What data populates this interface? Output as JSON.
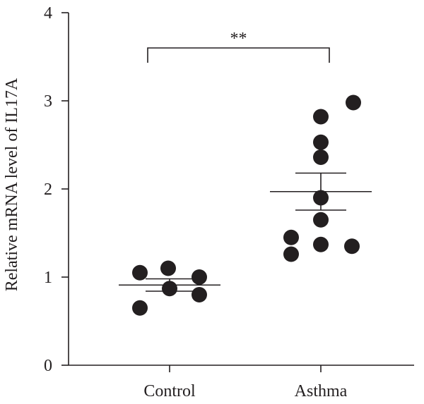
{
  "chart_data": {
    "type": "scatter",
    "ylabel": "Relative mRNA level of IL17A",
    "xlabel": "",
    "ylim": [
      0,
      4
    ],
    "yticks": [
      "0",
      "1",
      "2",
      "3",
      "4"
    ],
    "categories": [
      "Control",
      "Asthma"
    ],
    "series": [
      {
        "category": "Control",
        "values": [
          1.05,
          1.1,
          1.0,
          0.87,
          0.8,
          0.65
        ],
        "mean": 0.91,
        "sem_upper": 0.98,
        "sem_lower": 0.84
      },
      {
        "category": "Asthma",
        "values": [
          2.98,
          2.82,
          2.53,
          2.36,
          1.9,
          1.65,
          1.45,
          1.37,
          1.35,
          1.26
        ],
        "mean": 1.97,
        "sem_upper": 2.18,
        "sem_lower": 1.76
      }
    ],
    "significance": {
      "label": "**",
      "between": [
        "Control",
        "Asthma"
      ],
      "level": 3.6
    },
    "grid": false,
    "colors": {
      "points": "#231f20",
      "axes": "#231f20"
    }
  }
}
